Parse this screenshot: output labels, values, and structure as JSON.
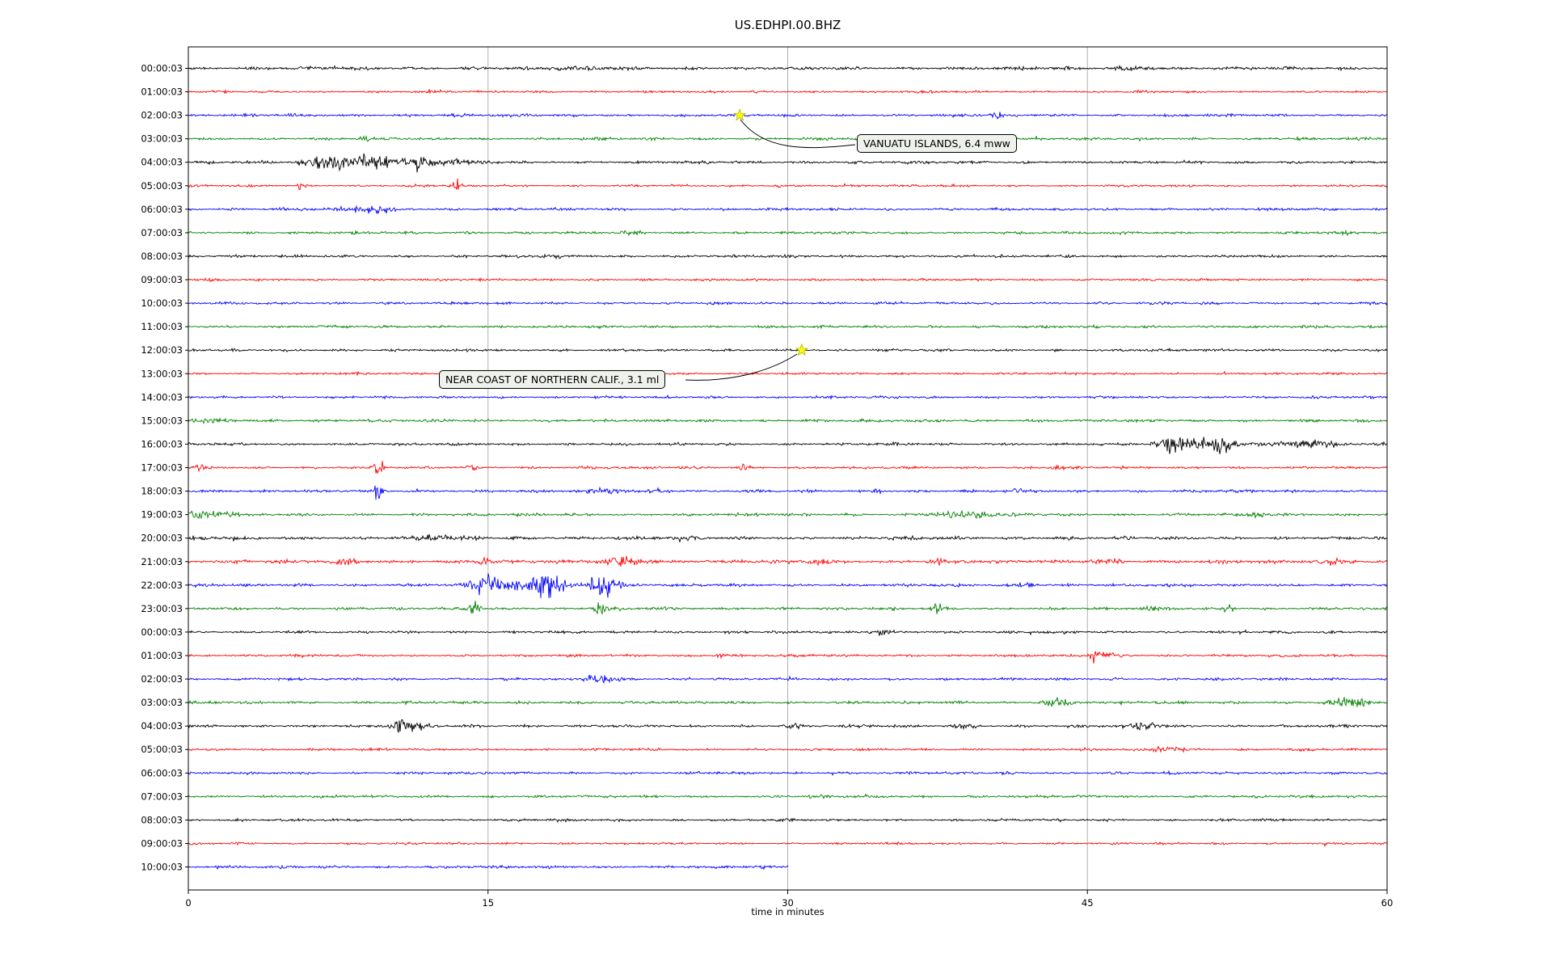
{
  "window": {
    "title": "US.EDHPI.00.BHZ"
  },
  "chart_data": {
    "type": "line",
    "variant": "helicorder-dayplot",
    "title": "US.EDHPI.00.BHZ",
    "xlabel": "time in minutes",
    "x_ticks": [
      0,
      15,
      30,
      45,
      60
    ],
    "xlim": [
      0,
      60
    ],
    "grid": "vertical-gridlines-at-ticks",
    "colors": {
      "cycle": [
        "#000000",
        "#ff0000",
        "#0000ff",
        "#008000"
      ],
      "grid": "#b0b0b0",
      "event_marker": "#ffff00",
      "annotation_bg": "#eef1ec",
      "annotation_border": "#000000"
    },
    "rows": [
      {
        "label": "00:00:03",
        "color": "#000000",
        "end": 60,
        "amp": 1.7,
        "bursts": [
          [
            20,
            1,
            2
          ],
          [
            47.3,
            1.8,
            1
          ]
        ]
      },
      {
        "label": "01:00:03",
        "color": "#ff0000",
        "end": 60,
        "amp": 1.2,
        "bursts": []
      },
      {
        "label": "02:00:03",
        "color": "#0000ff",
        "end": 60,
        "amp": 1.4,
        "bursts": [
          [
            40.5,
            2.5,
            0.3
          ]
        ]
      },
      {
        "label": "03:00:03",
        "color": "#008000",
        "end": 60,
        "amp": 1.4,
        "bursts": [
          [
            8.8,
            1.8,
            0.3
          ]
        ]
      },
      {
        "label": "04:00:03",
        "color": "#000000",
        "end": 60,
        "amp": 1.5,
        "bursts": [
          [
            6.3,
            4,
            0.8
          ],
          [
            7.5,
            8,
            0.9
          ],
          [
            8.8,
            10,
            0.4
          ],
          [
            9.6,
            4.5,
            0.8
          ],
          [
            10.8,
            2.5,
            1.2
          ],
          [
            11.6,
            7.5,
            0.35
          ],
          [
            13.2,
            2.2,
            1.5
          ]
        ]
      },
      {
        "label": "05:00:03",
        "color": "#ff0000",
        "end": 60,
        "amp": 1.2,
        "bursts": [
          [
            5.6,
            3.5,
            0.2
          ],
          [
            13.4,
            4.5,
            0.22
          ],
          [
            29.5,
            2.2,
            0.2
          ]
        ]
      },
      {
        "label": "06:00:03",
        "color": "#0000ff",
        "end": 60,
        "amp": 1.4,
        "bursts": [
          [
            8.7,
            2.8,
            1.0
          ],
          [
            9.8,
            2.2,
            0.6
          ]
        ]
      },
      {
        "label": "07:00:03",
        "color": "#008000",
        "end": 60,
        "amp": 1.4,
        "bursts": [
          [
            22.2,
            2.2,
            0.4
          ],
          [
            58,
            1.8,
            0.3
          ]
        ]
      },
      {
        "label": "08:00:03",
        "color": "#000000",
        "end": 60,
        "amp": 1.35,
        "bursts": [
          [
            18.2,
            1.6,
            0.5
          ]
        ]
      },
      {
        "label": "09:00:03",
        "color": "#ff0000",
        "end": 60,
        "amp": 1.2,
        "bursts": []
      },
      {
        "label": "10:00:03",
        "color": "#0000ff",
        "end": 60,
        "amp": 1.35,
        "bursts": []
      },
      {
        "label": "11:00:03",
        "color": "#008000",
        "end": 60,
        "amp": 1.35,
        "bursts": []
      },
      {
        "label": "12:00:03",
        "color": "#000000",
        "end": 60,
        "amp": 1.35,
        "bursts": []
      },
      {
        "label": "13:00:03",
        "color": "#ff0000",
        "end": 60,
        "amp": 1.2,
        "bursts": []
      },
      {
        "label": "14:00:03",
        "color": "#0000ff",
        "end": 60,
        "amp": 1.35,
        "bursts": []
      },
      {
        "label": "15:00:03",
        "color": "#008000",
        "end": 60,
        "amp": 1.5,
        "bursts": [
          [
            1,
            1.4,
            1.5
          ]
        ]
      },
      {
        "label": "16:00:03",
        "color": "#000000",
        "end": 60,
        "amp": 1.4,
        "bursts": [
          [
            49.3,
            8,
            0.7
          ],
          [
            50.3,
            5,
            0.9
          ],
          [
            51.8,
            8.5,
            0.5
          ],
          [
            53.2,
            2.6,
            1.2
          ],
          [
            55.5,
            2.8,
            0.9
          ],
          [
            56.6,
            2.4,
            0.8
          ]
        ]
      },
      {
        "label": "17:00:03",
        "color": "#ff0000",
        "end": 60,
        "amp": 1.3,
        "bursts": [
          [
            0.6,
            2.8,
            0.3
          ],
          [
            9.5,
            11,
            0.22
          ],
          [
            14.2,
            2.8,
            0.3
          ],
          [
            27.8,
            3.8,
            0.22
          ],
          [
            43.5,
            2.4,
            0.3
          ]
        ]
      },
      {
        "label": "18:00:03",
        "color": "#0000ff",
        "end": 60,
        "amp": 1.4,
        "bursts": [
          [
            9.5,
            10,
            0.28
          ],
          [
            21,
            2.8,
            0.8
          ],
          [
            23.5,
            2.4,
            0.6
          ],
          [
            34.5,
            2.8,
            0.3
          ],
          [
            41.5,
            2.4,
            0.3
          ]
        ]
      },
      {
        "label": "19:00:03",
        "color": "#008000",
        "end": 60,
        "amp": 1.5,
        "bursts": [
          [
            0.5,
            4.5,
            0.7
          ],
          [
            1.6,
            2.8,
            0.8
          ],
          [
            38.8,
            2.8,
            1.5
          ],
          [
            53.5,
            3.6,
            0.3
          ]
        ]
      },
      {
        "label": "20:00:03",
        "color": "#000000",
        "end": 60,
        "amp": 1.75,
        "bursts": [
          [
            12.5,
            2.2,
            1
          ]
        ]
      },
      {
        "label": "21:00:03",
        "color": "#ff0000",
        "end": 60,
        "amp": 1.8,
        "bursts": [
          [
            7.8,
            2.8,
            0.5
          ],
          [
            14.8,
            3.2,
            0.4
          ],
          [
            21.8,
            3.2,
            1.2
          ],
          [
            31.5,
            2.8,
            0.5
          ],
          [
            37.5,
            3.2,
            0.4
          ],
          [
            46,
            2.4,
            0.8
          ],
          [
            57.5,
            2.8,
            0.8
          ]
        ]
      },
      {
        "label": "22:00:03",
        "color": "#0000ff",
        "end": 60,
        "amp": 1.5,
        "bursts": [
          [
            14.6,
            10,
            0.5
          ],
          [
            15.4,
            5,
            0.8
          ],
          [
            16.6,
            3.5,
            1.4
          ],
          [
            17.8,
            12,
            0.4
          ],
          [
            18.4,
            7,
            0.6
          ],
          [
            20.6,
            11,
            0.5
          ],
          [
            21.3,
            4.5,
            0.8
          ],
          [
            42,
            2.8,
            0.4
          ]
        ]
      },
      {
        "label": "23:00:03",
        "color": "#008000",
        "end": 60,
        "amp": 1.45,
        "bursts": [
          [
            14.3,
            6.5,
            0.28
          ],
          [
            20.6,
            8.5,
            0.3
          ],
          [
            37.5,
            4.5,
            0.28
          ],
          [
            48.2,
            2.8,
            0.3
          ],
          [
            52,
            3.8,
            0.3
          ]
        ]
      },
      {
        "label": "00:00:03",
        "color": "#000000",
        "end": 60,
        "amp": 1.4,
        "bursts": [
          [
            34.6,
            2.8,
            0.5
          ]
        ]
      },
      {
        "label": "01:00:03",
        "color": "#ff0000",
        "end": 60,
        "amp": 1.3,
        "bursts": [
          [
            26.6,
            2.2,
            0.3
          ],
          [
            45.4,
            4.2,
            0.4
          ],
          [
            46.1,
            2.8,
            0.5
          ]
        ]
      },
      {
        "label": "02:00:03",
        "color": "#0000ff",
        "end": 60,
        "amp": 1.4,
        "bursts": [
          [
            20.4,
            4.5,
            0.5
          ],
          [
            21.1,
            3.5,
            0.4
          ]
        ]
      },
      {
        "label": "03:00:03",
        "color": "#008000",
        "end": 60,
        "amp": 1.5,
        "bursts": [
          [
            43.4,
            3.8,
            0.7
          ],
          [
            57.8,
            4.2,
            0.8
          ],
          [
            58.7,
            2.8,
            0.5
          ]
        ]
      },
      {
        "label": "04:00:03",
        "color": "#000000",
        "end": 60,
        "amp": 1.5,
        "bursts": [
          [
            10.6,
            9.5,
            0.35
          ],
          [
            11.1,
            3.5,
            0.8
          ],
          [
            30.3,
            2.4,
            0.4
          ],
          [
            39,
            2.2,
            0.5
          ],
          [
            48,
            2.8,
            0.8
          ]
        ]
      },
      {
        "label": "05:00:03",
        "color": "#ff0000",
        "end": 60,
        "amp": 1.3,
        "bursts": [
          [
            49,
            2.8,
            0.8
          ]
        ]
      },
      {
        "label": "06:00:03",
        "color": "#0000ff",
        "end": 60,
        "amp": 1.4,
        "bursts": []
      },
      {
        "label": "07:00:03",
        "color": "#008000",
        "end": 60,
        "amp": 1.4,
        "bursts": []
      },
      {
        "label": "08:00:03",
        "color": "#000000",
        "end": 60,
        "amp": 1.3,
        "bursts": []
      },
      {
        "label": "09:00:03",
        "color": "#ff0000",
        "end": 60,
        "amp": 1.2,
        "bursts": []
      },
      {
        "label": "10:00:03",
        "color": "#0000ff",
        "end": 30,
        "amp": 1.45,
        "bursts": []
      }
    ],
    "events": [
      {
        "label": "VANUATU ISLANDS, 6.4 mww",
        "row_index": 2,
        "row_label": "02:00:03",
        "minute": 27.6
      },
      {
        "label": "NEAR COAST OF NORTHERN CALIF., 3.1 ml",
        "row_index": 12,
        "row_label": "12:00:03",
        "minute": 30.7
      }
    ]
  }
}
